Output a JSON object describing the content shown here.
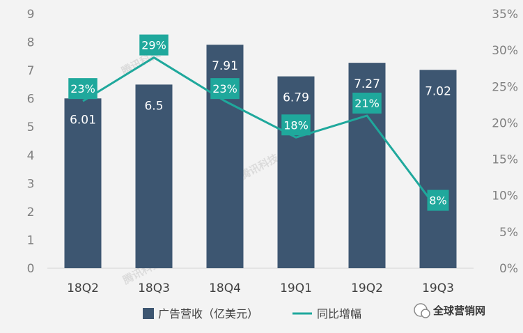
{
  "chart_data": {
    "type": "bar",
    "categories": [
      "18Q2",
      "18Q3",
      "18Q4",
      "19Q1",
      "19Q2",
      "19Q3"
    ],
    "series": [
      {
        "name": "广告营收（亿美元）",
        "kind": "bar",
        "axis": "left",
        "color": "#3d5671",
        "values": [
          6.01,
          6.5,
          7.91,
          6.79,
          7.27,
          7.02
        ],
        "labels": [
          "6.01",
          "6.5",
          "7.91",
          "6.79",
          "7.27",
          "7.02"
        ]
      },
      {
        "name": "同比增幅",
        "kind": "line",
        "axis": "right",
        "color": "#1fa89c",
        "values": [
          23,
          29,
          23,
          18,
          21,
          8
        ],
        "labels": [
          "23%",
          "29%",
          "23%",
          "18%",
          "21%",
          "8%"
        ]
      }
    ],
    "y_left": {
      "min": 0,
      "max": 9,
      "ticks": [
        "0",
        "1",
        "2",
        "3",
        "4",
        "5",
        "6",
        "7",
        "8",
        "9"
      ]
    },
    "y_right": {
      "min": 0,
      "max": 35,
      "ticks": [
        "0%",
        "5%",
        "10%",
        "15%",
        "20%",
        "25%",
        "30%",
        "35%"
      ]
    },
    "grid": false,
    "legend_position": "bottom"
  },
  "source_mark": "全球营销网",
  "watermark_text": "腾讯科技"
}
